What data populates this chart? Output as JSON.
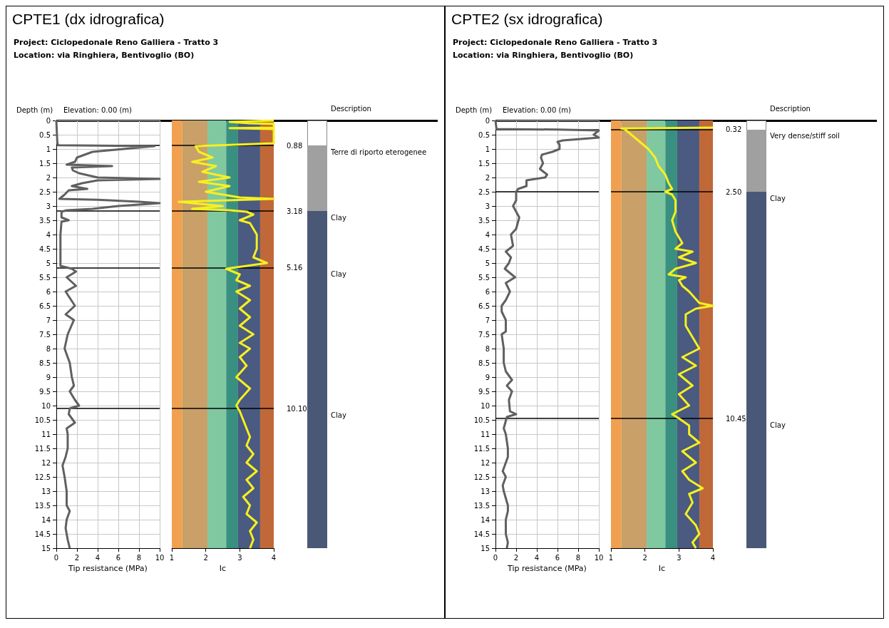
{
  "chart_data": [
    {
      "type": "line",
      "title": "CPTE1 (dx idrografica)",
      "subtitle": "Project: Ciclopedonale Reno Galliera - Tratto 3",
      "annotations": [
        "Location: via Ringhiera, Bentivoglio (BO)",
        "Elevation: 0.00 (m)"
      ],
      "xlabel": "Tip resistance (MPa)",
      "ylabel": "Depth (m)",
      "xlim": [
        0,
        10
      ],
      "xticks": [
        0,
        2,
        4,
        6,
        8,
        10
      ],
      "ylim": [
        15,
        0
      ],
      "yticks": [
        0,
        0.5,
        1,
        1.5,
        2,
        2.5,
        3,
        3.5,
        4,
        4.5,
        5,
        5.5,
        6,
        6.5,
        7,
        7.5,
        8,
        8.5,
        9,
        9.5,
        10,
        10.5,
        11,
        11.5,
        12,
        12.5,
        13,
        13.5,
        14,
        14.5,
        15
      ],
      "grid": true,
      "series": [
        {
          "color": "#606060",
          "x": [
            0,
            0.1,
            0.2,
            9.5,
            6.5,
            3.5,
            2,
            1.8,
            1,
            5.4,
            1.5,
            1.6,
            2.2,
            4,
            10,
            4,
            2.5,
            1.5,
            3,
            1.2,
            0.8,
            0.3,
            4,
            8,
            10,
            6,
            3.5,
            1,
            0.5,
            0.5,
            1.2,
            0.5,
            0.4,
            0.4,
            1.5,
            1.9,
            1,
            1.9,
            0.9,
            1.8,
            0.9,
            1.7,
            1.1,
            0.8,
            1.1,
            1.3,
            1.5,
            1.7,
            1.3,
            1.8,
            2.2,
            1.3,
            1.2,
            1.8,
            1,
            1.1,
            1.1,
            0.9,
            0.6,
            0.8,
            1,
            1,
            1.3,
            1,
            0.9,
            1.1,
            1.3
          ],
          "values": [
            0,
            0.8,
            0.87,
            0.9,
            1,
            1.1,
            1.3,
            1.45,
            1.55,
            1.6,
            1.65,
            1.75,
            1.85,
            2,
            2.05,
            2.1,
            2.2,
            2.3,
            2.4,
            2.45,
            2.6,
            2.75,
            2.78,
            2.85,
            2.9,
            3,
            3.1,
            3.15,
            3.2,
            3.4,
            3.5,
            3.55,
            4,
            5.1,
            5.2,
            5.3,
            5.5,
            5.8,
            6,
            6.5,
            6.8,
            7,
            7.5,
            8,
            8.3,
            8.5,
            9,
            9.3,
            9.5,
            9.8,
            10,
            10.1,
            10.3,
            10.6,
            10.8,
            11,
            11.5,
            11.8,
            12.1,
            12.5,
            13,
            13.5,
            13.7,
            14,
            14.3,
            14.7,
            15
          ]
        }
      ],
      "ref_lines": [
        {
          "axis": "y",
          "value": 0.88
        },
        {
          "axis": "y",
          "value": 3.18
        },
        {
          "axis": "y",
          "value": 5.16
        },
        {
          "axis": "y",
          "value": 10.1
        }
      ]
    },
    {
      "type": "line",
      "xlabel": "Ic",
      "xlim": [
        1,
        4
      ],
      "xticks": [
        1,
        2,
        3,
        4
      ],
      "ylim": [
        15,
        0
      ],
      "tick_labels": "x",
      "annotations": [
        "Description",
        "Terre di riporto eterogenee",
        "Clay",
        "Clay",
        "Clay"
      ],
      "bands": [
        {
          "axis": "x",
          "from": 1,
          "to": 1.31,
          "color": "#f0a050"
        },
        {
          "axis": "x",
          "from": 1.31,
          "to": 2.05,
          "color": "#c8a068"
        },
        {
          "axis": "x",
          "from": 2.05,
          "to": 2.6,
          "color": "#80c8a0"
        },
        {
          "axis": "x",
          "from": 2.6,
          "to": 2.95,
          "color": "#3a9080"
        },
        {
          "axis": "x",
          "from": 2.95,
          "to": 3.6,
          "color": "#4a5a80"
        },
        {
          "axis": "x",
          "from": 3.6,
          "to": 4,
          "color": "#c06838"
        }
      ],
      "series": [
        {
          "color": "#f5f020",
          "x": [
            4,
            2.7,
            3.3,
            4,
            4,
            2.7,
            4,
            4,
            1.7,
            1.8,
            2.2,
            1.6,
            2.3,
            1.9,
            2.7,
            1.8,
            2.7,
            2,
            3,
            4,
            1.2,
            1.6,
            2.5,
            1.6,
            2.7,
            3.2,
            3.4,
            3,
            3.3,
            3.5,
            3.5,
            3.4,
            3.8,
            3.2,
            2.6,
            3,
            2.9,
            3.3,
            2.9,
            3.3,
            3,
            3.3,
            3,
            3.4,
            3,
            3.3,
            3,
            3.2,
            2.9,
            3.3,
            3,
            2.9,
            3,
            3.1,
            3.2,
            3.3,
            3.2,
            3.4,
            3.2,
            3.5,
            3.2,
            3.4,
            3.1,
            3.3,
            3.2,
            3.5,
            3.3,
            3.4,
            3.3
          ],
          "values": [
            0,
            0.05,
            0.1,
            0.12,
            0.25,
            0.27,
            0.3,
            0.8,
            0.9,
            1.1,
            1.3,
            1.45,
            1.6,
            1.8,
            2,
            2.15,
            2.3,
            2.5,
            2.7,
            2.75,
            2.85,
            2.9,
            3,
            3.1,
            3.15,
            3.2,
            3.3,
            3.5,
            3.6,
            4,
            4.5,
            4.8,
            5,
            5.1,
            5.2,
            5.4,
            5.6,
            5.8,
            6,
            6.3,
            6.6,
            6.9,
            7.2,
            7.5,
            7.8,
            8,
            8.3,
            8.6,
            9,
            9.4,
            9.8,
            10,
            10.2,
            10.5,
            10.8,
            11.1,
            11.4,
            11.7,
            12,
            12.3,
            12.6,
            12.9,
            13.2,
            13.5,
            13.8,
            14.1,
            14.4,
            14.7,
            15
          ]
        }
      ],
      "ref_lines": [
        {
          "axis": "y",
          "value": 0.88,
          "label": "0.88"
        },
        {
          "axis": "y",
          "value": 3.18,
          "label": "3.18"
        },
        {
          "axis": "y",
          "value": 5.16,
          "label": "5.16"
        },
        {
          "axis": "y",
          "value": 10.1,
          "label": "10.10"
        }
      ]
    },
    {
      "type": "line",
      "title": "CPTE2 (sx idrografica)",
      "subtitle": "Project: Ciclopedonale Reno Galliera - Tratto 3",
      "annotations": [
        "Location: via Ringhiera, Bentivoglio (BO)",
        "Elevation: 0.00 (m)"
      ],
      "xlabel": "Tip resistance (MPa)",
      "ylabel": "Depth (m)",
      "xlim": [
        0,
        10
      ],
      "xticks": [
        0,
        2,
        4,
        6,
        8,
        10
      ],
      "ylim": [
        15,
        0
      ],
      "yticks": [
        0,
        0.5,
        1,
        1.5,
        2,
        2.5,
        3,
        3.5,
        4,
        4.5,
        5,
        5.5,
        6,
        6.5,
        7,
        7.5,
        8,
        8.5,
        9,
        9.5,
        10,
        10.5,
        11,
        11.5,
        12,
        12.5,
        13,
        13.5,
        14,
        14.5,
        15
      ],
      "grid": true,
      "series": [
        {
          "color": "#606060",
          "x": [
            0,
            0.1,
            6,
            10,
            9.5,
            10,
            6.5,
            6,
            6.2,
            6.2,
            5.5,
            4.5,
            4.4,
            4.6,
            4.3,
            5,
            4.8,
            3,
            3,
            2.2,
            2,
            2,
            1.7,
            2.3,
            2,
            1.5,
            1.7,
            1,
            1.5,
            1.3,
            0.9,
            1.9,
            1,
            1.4,
            1,
            0.6,
            0.6,
            1,
            1,
            0.6,
            0.8,
            0.8,
            1,
            1.6,
            1.1,
            1.6,
            1.3,
            1.4,
            2,
            1.1,
            0.8,
            1,
            1.2,
            1.2,
            1,
            0.7,
            1,
            0.7,
            0.8,
            1.2,
            1.2,
            1,
            1,
            1.2,
            1.1
          ],
          "values": [
            0,
            0.3,
            0.32,
            0.35,
            0.5,
            0.6,
            0.7,
            0.75,
            0.85,
            1,
            1.1,
            1.2,
            1.3,
            1.5,
            1.7,
            1.9,
            2,
            2.1,
            2.3,
            2.4,
            2.5,
            2.8,
            3,
            3.4,
            3.8,
            4,
            4.4,
            4.6,
            4.8,
            5,
            5.2,
            5.5,
            5.7,
            6,
            6.3,
            6.5,
            6.7,
            7,
            7.4,
            7.5,
            8,
            8.5,
            8.8,
            9.1,
            9.3,
            9.5,
            9.8,
            10.2,
            10.3,
            10.4,
            10.8,
            11,
            11.5,
            11.8,
            12,
            12.3,
            12.5,
            12.8,
            13,
            13.5,
            13.7,
            14,
            14.5,
            14.8,
            15
          ]
        }
      ],
      "ref_lines": [
        {
          "axis": "y",
          "value": 0.32
        },
        {
          "axis": "y",
          "value": 2.5
        },
        {
          "axis": "y",
          "value": 10.45
        }
      ]
    },
    {
      "type": "line",
      "xlabel": "Ic",
      "xlim": [
        1,
        4
      ],
      "xticks": [
        1,
        2,
        3,
        4
      ],
      "ylim": [
        15,
        0
      ],
      "tick_labels": "x",
      "annotations": [
        "Description",
        "Very dense/stiff soil",
        "Clay",
        "Clay"
      ],
      "bands": [
        {
          "axis": "x",
          "from": 1,
          "to": 1.31,
          "color": "#f0a050"
        },
        {
          "axis": "x",
          "from": 1.31,
          "to": 2.05,
          "color": "#c8a068"
        },
        {
          "axis": "x",
          "from": 2.05,
          "to": 2.6,
          "color": "#80c8a0"
        },
        {
          "axis": "x",
          "from": 2.6,
          "to": 2.95,
          "color": "#3a9080"
        },
        {
          "axis": "x",
          "from": 2.95,
          "to": 3.6,
          "color": "#4a5a80"
        },
        {
          "axis": "x",
          "from": 3.6,
          "to": 4,
          "color": "#c06838"
        }
      ],
      "series": [
        {
          "color": "#f5f020",
          "x": [
            4,
            1.3,
            1.4,
            1.6,
            1.9,
            2.1,
            2.3,
            2.4,
            2.6,
            2.7,
            2.8,
            2.6,
            2.8,
            2.9,
            2.9,
            2.8,
            2.9,
            3.1,
            2.9,
            3.4,
            3,
            3.5,
            2.9,
            2.7,
            3.2,
            3,
            3.1,
            3.3,
            3.6,
            4,
            3.5,
            3.2,
            3.2,
            3.4,
            3.6,
            3.1,
            3.5,
            3,
            3.4,
            3,
            3.3,
            2.8,
            3,
            3.3,
            3.3,
            3.6,
            3.1,
            3.5,
            3.1,
            3.3,
            3.7,
            3.3,
            3.4,
            3.2,
            3.5,
            3.6,
            3.4,
            3.5
          ],
          "values": [
            0.25,
            0.28,
            0.3,
            0.5,
            0.8,
            1,
            1.3,
            1.6,
            1.9,
            2.2,
            2.4,
            2.5,
            2.6,
            2.8,
            3.2,
            3.5,
            3.9,
            4.3,
            4.5,
            4.6,
            4.8,
            5,
            5.2,
            5.4,
            5.5,
            5.6,
            5.8,
            6,
            6.4,
            6.5,
            6.6,
            6.8,
            7.2,
            7.6,
            8,
            8.3,
            8.6,
            8.9,
            9.3,
            9.6,
            10,
            10.3,
            10.45,
            10.7,
            11,
            11.3,
            11.6,
            12,
            12.3,
            12.6,
            12.9,
            13.1,
            13.4,
            13.8,
            14.2,
            14.5,
            14.8,
            15
          ]
        }
      ],
      "ref_lines": [
        {
          "axis": "y",
          "value": 0.32,
          "label": "0.32"
        },
        {
          "axis": "y",
          "value": 2.5,
          "label": "2.50"
        },
        {
          "axis": "y",
          "value": 10.45,
          "label": "10.45"
        }
      ]
    }
  ]
}
